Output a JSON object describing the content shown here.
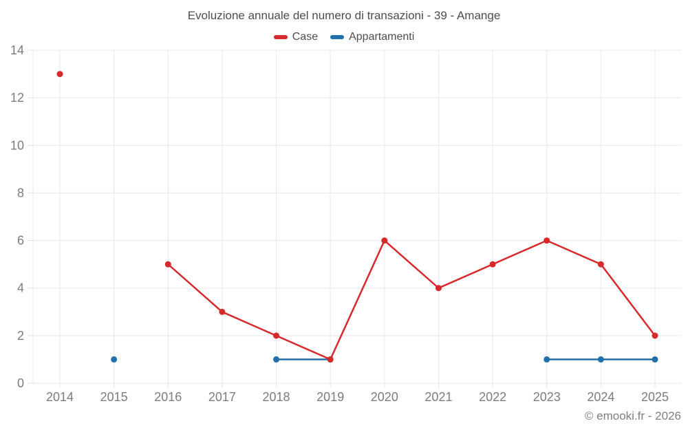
{
  "footer": {
    "credit": "© emooki.fr - 2026"
  },
  "colors": {
    "grid": "#e8e8e8",
    "tick": "#e0e0e0",
    "axis_text": "#7c7c7c",
    "title_text": "#4d4d4d",
    "background": "#ffffff",
    "case_red": "#d7292b",
    "appartamenti_blue": "#1f70ac"
  },
  "chart_data": {
    "type": "line",
    "title": "Evoluzione annuale del numero di transazioni - 39 - Amange",
    "x": [
      "2014",
      "2015",
      "2016",
      "2017",
      "2018",
      "2019",
      "2020",
      "2021",
      "2022",
      "2023",
      "2024",
      "2025"
    ],
    "series": [
      {
        "name": "Case",
        "color": "#d7292b",
        "values": [
          13,
          null,
          5,
          3,
          2,
          1,
          6,
          4,
          5,
          6,
          5,
          2
        ]
      },
      {
        "name": "Appartamenti",
        "color": "#1f70ac",
        "values": [
          null,
          1,
          null,
          null,
          1,
          1,
          null,
          null,
          null,
          1,
          1,
          1
        ]
      }
    ],
    "xlabel": "",
    "ylabel": "",
    "ylim": [
      0,
      14
    ],
    "ytick_step": 2,
    "yticks": [
      0,
      2,
      4,
      6,
      8,
      10,
      12,
      14
    ],
    "grid": true,
    "legend_position": "top",
    "marker": "circle"
  }
}
